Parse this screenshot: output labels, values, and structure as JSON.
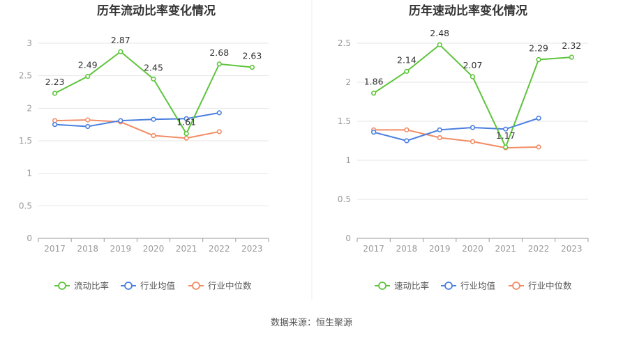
{
  "source_label": "数据来源：恒生聚源",
  "chart_data": [
    {
      "type": "line",
      "title": "历年流动比率变化情况",
      "categories": [
        "2017",
        "2018",
        "2019",
        "2020",
        "2021",
        "2022",
        "2023"
      ],
      "ylim": [
        0,
        3
      ],
      "yticks": [
        0,
        0.5,
        1,
        1.5,
        2,
        2.5,
        3
      ],
      "grid": true,
      "legend_position": "bottom-center",
      "series": [
        {
          "name": "流动比率",
          "color": "#5ec43b",
          "values": [
            2.23,
            2.49,
            2.87,
            2.45,
            1.61,
            2.68,
            2.63
          ],
          "labels": [
            "2.23",
            "2.49",
            "2.87",
            "2.45",
            "1.61",
            "2.68",
            "2.63"
          ]
        },
        {
          "name": "行业均值",
          "color": "#4a7fe0",
          "values": [
            1.75,
            1.72,
            1.81,
            1.83,
            1.84,
            1.93,
            null
          ]
        },
        {
          "name": "行业中位数",
          "color": "#f28c64",
          "values": [
            1.81,
            1.82,
            1.79,
            1.58,
            1.54,
            1.64,
            null
          ]
        }
      ]
    },
    {
      "type": "line",
      "title": "历年速动比率变化情况",
      "categories": [
        "2017",
        "2018",
        "2019",
        "2020",
        "2021",
        "2022",
        "2023"
      ],
      "ylim": [
        0,
        2.5
      ],
      "yticks": [
        0,
        0.5,
        1,
        1.5,
        2,
        2.5
      ],
      "grid": true,
      "legend_position": "bottom-center",
      "series": [
        {
          "name": "速动比率",
          "color": "#5ec43b",
          "values": [
            1.86,
            2.14,
            2.48,
            2.07,
            1.17,
            2.29,
            2.32
          ],
          "labels": [
            "1.86",
            "2.14",
            "2.48",
            "2.07",
            "1.17",
            "2.29",
            "2.32"
          ]
        },
        {
          "name": "行业均值",
          "color": "#4a7fe0",
          "values": [
            1.36,
            1.25,
            1.39,
            1.42,
            1.4,
            1.54,
            null
          ]
        },
        {
          "name": "行业中位数",
          "color": "#f28c64",
          "values": [
            1.39,
            1.39,
            1.29,
            1.24,
            1.16,
            1.17,
            null
          ]
        }
      ]
    }
  ]
}
